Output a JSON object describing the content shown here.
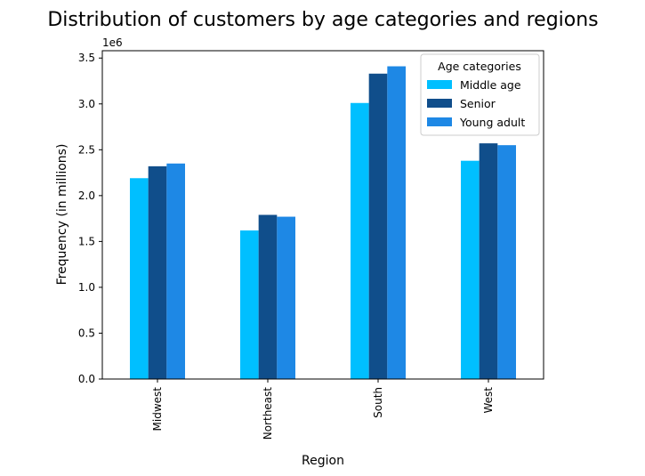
{
  "chart_data": {
    "type": "bar",
    "title": "Distribution of customers by age categories and regions",
    "xlabel": "Region",
    "ylabel": "Frequency (in millions)",
    "y_offset_label": "1e6",
    "categories": [
      "Midwest",
      "Northeast",
      "South",
      "West"
    ],
    "series": [
      {
        "name": "Middle age",
        "color": "#00bfff",
        "values": [
          2190000,
          1620000,
          3010000,
          2380000
        ]
      },
      {
        "name": "Senior",
        "color": "#104e8b",
        "values": [
          2320000,
          1790000,
          3330000,
          2570000
        ]
      },
      {
        "name": "Young adult",
        "color": "#1e88e5",
        "values": [
          2350000,
          1770000,
          3410000,
          2550000
        ]
      }
    ],
    "ylim": [
      0,
      3580000
    ],
    "yticks": [
      0,
      500000,
      1000000,
      1500000,
      2000000,
      2500000,
      3000000,
      3500000
    ],
    "ytick_labels": [
      "0.0",
      "0.5",
      "1.0",
      "1.5",
      "2.0",
      "2.5",
      "3.0",
      "3.5"
    ],
    "legend": {
      "title": "Age categories",
      "placement": "top-right"
    },
    "grid": false
  }
}
